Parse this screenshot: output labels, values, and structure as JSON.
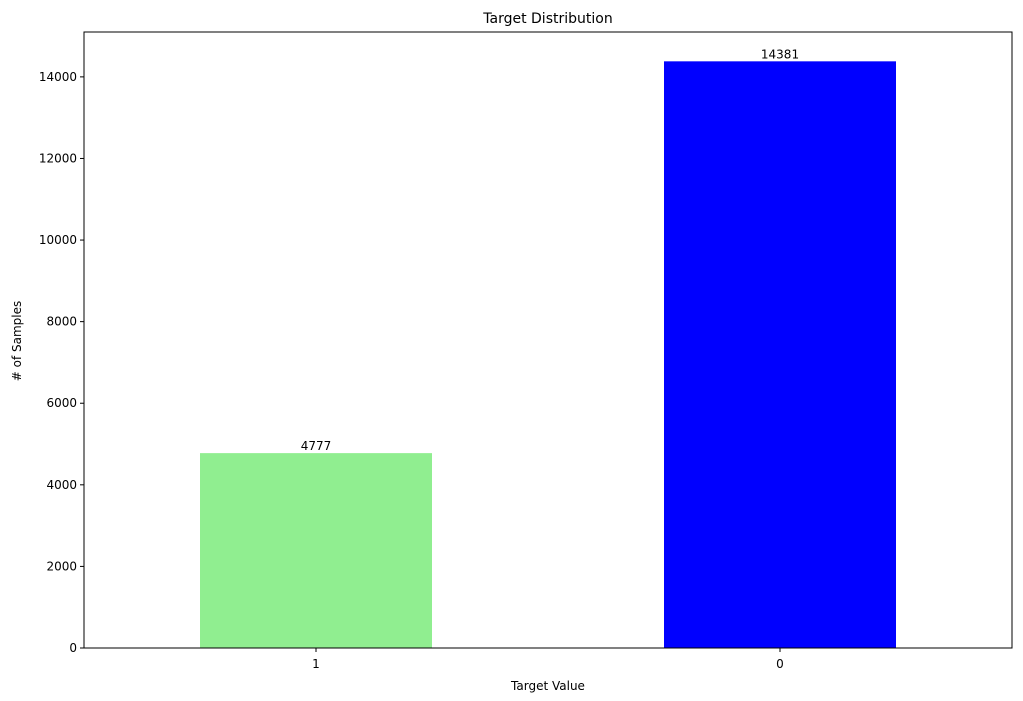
{
  "chart_data": {
    "type": "bar",
    "title": "Target Distribution",
    "xlabel": "Target Value",
    "ylabel": "# of Samples",
    "categories": [
      "1",
      "0"
    ],
    "values": [
      4777,
      14381
    ],
    "data_labels": [
      "4777",
      "14381"
    ],
    "bar_colors": [
      "#90EE90",
      "#0000FF"
    ],
    "ylim": [
      0,
      15100
    ],
    "yticks": [
      0,
      2000,
      4000,
      6000,
      8000,
      10000,
      12000,
      14000
    ],
    "grid": false,
    "legend": "none"
  }
}
